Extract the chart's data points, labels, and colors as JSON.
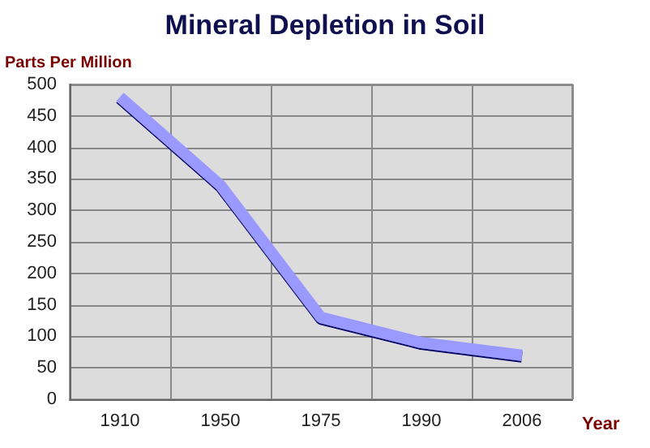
{
  "chart_data": {
    "type": "line",
    "title": "Mineral Depletion in Soil",
    "ylabel": "Parts Per Million",
    "xlabel": "Year",
    "categories": [
      "1910",
      "1950",
      "1975",
      "1990",
      "2006"
    ],
    "series": [
      {
        "color": "#9999ff",
        "values": [
          480,
          340,
          130,
          90,
          70
        ]
      }
    ],
    "ylim": [
      0,
      500
    ],
    "yticks": [
      0,
      50,
      100,
      150,
      200,
      250,
      300,
      350,
      400,
      450,
      500
    ],
    "grid": true,
    "marker": "none",
    "line_style": "solid"
  }
}
